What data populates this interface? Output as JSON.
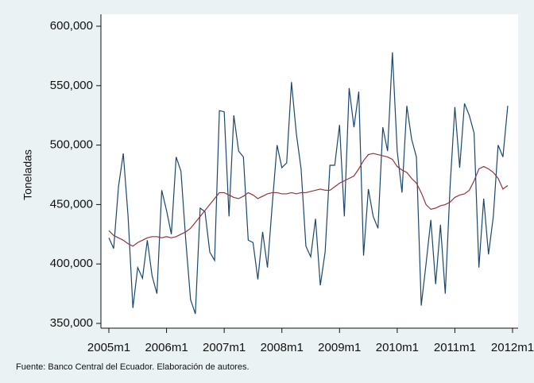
{
  "chart_data": {
    "type": "line",
    "ylabel": "Toneladas",
    "note": "Fuente: Banco Central del Ecuador. Elaboración de autores.",
    "x": [
      "2005m1",
      "2005m2",
      "2005m3",
      "2005m4",
      "2005m5",
      "2005m6",
      "2005m7",
      "2005m8",
      "2005m9",
      "2005m10",
      "2005m11",
      "2005m12",
      "2006m1",
      "2006m2",
      "2006m3",
      "2006m4",
      "2006m5",
      "2006m6",
      "2006m7",
      "2006m8",
      "2006m9",
      "2006m10",
      "2006m11",
      "2006m12",
      "2007m1",
      "2007m2",
      "2007m3",
      "2007m4",
      "2007m5",
      "2007m6",
      "2007m7",
      "2007m8",
      "2007m9",
      "2007m10",
      "2007m11",
      "2007m12",
      "2008m1",
      "2008m2",
      "2008m3",
      "2008m4",
      "2008m5",
      "2008m6",
      "2008m7",
      "2008m8",
      "2008m9",
      "2008m10",
      "2008m11",
      "2008m12",
      "2009m1",
      "2009m2",
      "2009m3",
      "2009m4",
      "2009m5",
      "2009m6",
      "2009m7",
      "2009m8",
      "2009m9",
      "2009m10",
      "2009m11",
      "2009m12",
      "2010m1",
      "2010m2",
      "2010m3",
      "2010m4",
      "2010m5",
      "2010m6",
      "2010m7",
      "2010m8",
      "2010m9",
      "2010m10",
      "2010m11",
      "2010m12",
      "2011m1",
      "2011m2",
      "2011m3",
      "2011m4",
      "2011m5",
      "2011m6",
      "2011m7",
      "2011m8",
      "2011m9",
      "2011m10",
      "2011m11",
      "2011m12"
    ],
    "series": [
      {
        "color": "#1a476f",
        "values": [
          422000,
          413000,
          465000,
          493000,
          440000,
          363000,
          397000,
          388000,
          420000,
          390000,
          375000,
          462000,
          445000,
          425000,
          490000,
          478000,
          420000,
          370000,
          358000,
          447000,
          444000,
          410000,
          403000,
          529000,
          528000,
          440000,
          525000,
          495000,
          490000,
          420000,
          418000,
          387000,
          427000,
          397000,
          450000,
          500000,
          481000,
          485000,
          553000,
          510000,
          480000,
          415000,
          406000,
          438000,
          382000,
          410000,
          483000,
          483000,
          517000,
          440000,
          548000,
          515000,
          545000,
          407000,
          463000,
          440000,
          430000,
          515000,
          495000,
          578000,
          495000,
          460000,
          533000,
          505000,
          490000,
          365000,
          400000,
          437000,
          383000,
          433000,
          375000,
          465000,
          532000,
          481000,
          535000,
          525000,
          510000,
          397000,
          455000,
          408000,
          440000,
          500000,
          490000,
          533000
        ]
      },
      {
        "color": "#90353b",
        "values": [
          428000,
          424000,
          422000,
          420000,
          417000,
          415000,
          418000,
          420000,
          422000,
          423000,
          423000,
          422000,
          423000,
          422000,
          423000,
          425000,
          427000,
          430000,
          435000,
          440000,
          445000,
          450000,
          455000,
          460000,
          460000,
          458000,
          456000,
          455000,
          457000,
          460000,
          458000,
          455000,
          457000,
          459000,
          460000,
          460000,
          459000,
          459000,
          460000,
          459000,
          460000,
          460000,
          461000,
          462000,
          463000,
          462000,
          462000,
          465000,
          468000,
          470000,
          472000,
          474000,
          480000,
          487000,
          492000,
          493000,
          492000,
          491000,
          490000,
          488000,
          482000,
          479000,
          477000,
          472000,
          468000,
          460000,
          450000,
          446000,
          447000,
          449000,
          450000,
          452000,
          456000,
          458000,
          459000,
          462000,
          470000,
          480000,
          482000,
          480000,
          477000,
          472000,
          463000,
          466000
        ]
      }
    ],
    "xlim": [
      "2005m1",
      "2012m1"
    ],
    "xticks": [
      "2005m1",
      "2006m1",
      "2007m1",
      "2008m1",
      "2009m1",
      "2010m1",
      "2011m1",
      "2012m1"
    ],
    "ylim": [
      350000,
      600000
    ],
    "yticks": [
      {
        "value": 350000,
        "label": "350,000"
      },
      {
        "value": 400000,
        "label": "400,000"
      },
      {
        "value": 450000,
        "label": "450,000"
      },
      {
        "value": 500000,
        "label": "500,000"
      },
      {
        "value": 550000,
        "label": "550,000"
      },
      {
        "value": 600000,
        "label": "600,000"
      }
    ],
    "grid": false
  }
}
